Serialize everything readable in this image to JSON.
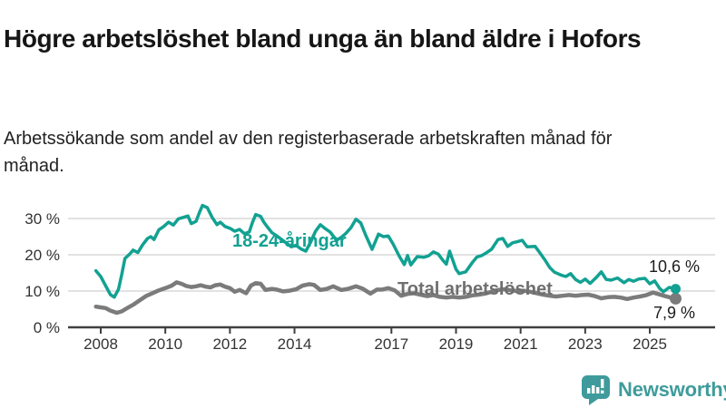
{
  "header": {
    "title": "Högre arbetslöshet bland unga än bland äldre i Hofors",
    "subtitle": "Arbetssökande som andel av den registerbaserade arbetskraften månad för månad."
  },
  "footer": {
    "brand": "Newsworthy"
  },
  "colors": {
    "young_line": "#12a192",
    "total_line": "#7b7b7b",
    "total_label": "#6f6f6f",
    "grid": "#d8d8d8",
    "axis": "#404040",
    "axis_text": "#333333",
    "value_text": "#1c1c1c",
    "brand": "#3f9b9b"
  },
  "chart_data": {
    "type": "line",
    "x_unit": "year (monthly observations)",
    "xlim": [
      2007.0,
      2027.0
    ],
    "ylim": [
      0,
      35
    ],
    "grid": true,
    "legend_position": "inline-labels",
    "y_ticks": [
      {
        "value": 0,
        "label": "0 %"
      },
      {
        "value": 10,
        "label": "10 %"
      },
      {
        "value": 20,
        "label": "20 %"
      },
      {
        "value": 30,
        "label": "30 %"
      }
    ],
    "x_ticks": [
      {
        "value": 2008,
        "label": "2008"
      },
      {
        "value": 2010,
        "label": "2010"
      },
      {
        "value": 2012,
        "label": "2012"
      },
      {
        "value": 2014,
        "label": "2014"
      },
      {
        "value": 2017,
        "label": "2017"
      },
      {
        "value": 2019,
        "label": "2019"
      },
      {
        "value": 2021,
        "label": "2021"
      },
      {
        "value": 2023,
        "label": "2023"
      },
      {
        "value": 2025,
        "label": "2025"
      }
    ],
    "series": [
      {
        "id": "total",
        "name": "Total arbetslöshet",
        "end_label": "7,9 %",
        "end_value": 7.9,
        "points": [
          [
            2007.85,
            5.7
          ],
          [
            2008.0,
            5.5
          ],
          [
            2008.15,
            5.3
          ],
          [
            2008.3,
            4.6
          ],
          [
            2008.5,
            4.0
          ],
          [
            2008.65,
            4.4
          ],
          [
            2008.8,
            5.2
          ],
          [
            2009.0,
            6.2
          ],
          [
            2009.2,
            7.4
          ],
          [
            2009.4,
            8.6
          ],
          [
            2009.6,
            9.4
          ],
          [
            2009.8,
            10.2
          ],
          [
            2010.0,
            10.8
          ],
          [
            2010.2,
            11.5
          ],
          [
            2010.35,
            12.4
          ],
          [
            2010.5,
            12.0
          ],
          [
            2010.65,
            11.4
          ],
          [
            2010.8,
            11.1
          ],
          [
            2010.95,
            11.3
          ],
          [
            2011.1,
            11.6
          ],
          [
            2011.25,
            11.2
          ],
          [
            2011.4,
            11.0
          ],
          [
            2011.55,
            11.6
          ],
          [
            2011.7,
            11.8
          ],
          [
            2011.85,
            11.2
          ],
          [
            2012.0,
            10.8
          ],
          [
            2012.15,
            9.8
          ],
          [
            2012.3,
            10.3
          ],
          [
            2012.5,
            9.4
          ],
          [
            2012.65,
            11.5
          ],
          [
            2012.8,
            12.2
          ],
          [
            2012.95,
            12.0
          ],
          [
            2013.1,
            10.3
          ],
          [
            2013.3,
            10.6
          ],
          [
            2013.45,
            10.4
          ],
          [
            2013.65,
            9.9
          ],
          [
            2013.85,
            10.1
          ],
          [
            2014.05,
            10.5
          ],
          [
            2014.25,
            11.5
          ],
          [
            2014.45,
            11.9
          ],
          [
            2014.6,
            11.7
          ],
          [
            2014.8,
            10.3
          ],
          [
            2015.0,
            10.6
          ],
          [
            2015.2,
            11.3
          ],
          [
            2015.45,
            10.3
          ],
          [
            2015.65,
            10.6
          ],
          [
            2015.9,
            11.3
          ],
          [
            2016.1,
            10.7
          ],
          [
            2016.35,
            9.3
          ],
          [
            2016.55,
            10.4
          ],
          [
            2016.7,
            10.4
          ],
          [
            2016.9,
            10.8
          ],
          [
            2017.1,
            10.2
          ],
          [
            2017.3,
            8.7
          ],
          [
            2017.5,
            9.2
          ],
          [
            2017.7,
            9.4
          ],
          [
            2017.9,
            9.0
          ],
          [
            2018.1,
            8.6
          ],
          [
            2018.3,
            8.9
          ],
          [
            2018.5,
            8.4
          ],
          [
            2018.7,
            8.2
          ],
          [
            2018.9,
            8.4
          ],
          [
            2019.1,
            8.2
          ],
          [
            2019.3,
            8.4
          ],
          [
            2019.5,
            8.8
          ],
          [
            2019.7,
            9.0
          ],
          [
            2019.9,
            9.3
          ],
          [
            2020.1,
            9.8
          ],
          [
            2020.3,
            10.3
          ],
          [
            2020.5,
            10.5
          ],
          [
            2020.7,
            10.2
          ],
          [
            2020.9,
            10.0
          ],
          [
            2021.1,
            10.1
          ],
          [
            2021.3,
            9.8
          ],
          [
            2021.5,
            9.4
          ],
          [
            2021.7,
            9.0
          ],
          [
            2021.9,
            8.7
          ],
          [
            2022.1,
            8.5
          ],
          [
            2022.3,
            8.7
          ],
          [
            2022.5,
            8.9
          ],
          [
            2022.7,
            8.7
          ],
          [
            2022.9,
            8.9
          ],
          [
            2023.1,
            9.0
          ],
          [
            2023.3,
            8.6
          ],
          [
            2023.5,
            8.0
          ],
          [
            2023.7,
            8.3
          ],
          [
            2023.9,
            8.4
          ],
          [
            2024.1,
            8.2
          ],
          [
            2024.3,
            7.8
          ],
          [
            2024.5,
            8.2
          ],
          [
            2024.7,
            8.5
          ],
          [
            2024.9,
            8.9
          ],
          [
            2025.1,
            9.6
          ],
          [
            2025.25,
            9.2
          ],
          [
            2025.4,
            8.8
          ],
          [
            2025.6,
            8.3
          ],
          [
            2025.8,
            7.9
          ]
        ]
      },
      {
        "id": "young",
        "name": "18-24-åringar",
        "end_label": "10,6 %",
        "end_value": 10.6,
        "points": [
          [
            2007.85,
            15.6
          ],
          [
            2008.0,
            14.0
          ],
          [
            2008.15,
            11.5
          ],
          [
            2008.3,
            9.0
          ],
          [
            2008.42,
            8.3
          ],
          [
            2008.55,
            10.5
          ],
          [
            2008.65,
            14.5
          ],
          [
            2008.75,
            19.0
          ],
          [
            2008.9,
            20.2
          ],
          [
            2009.0,
            21.3
          ],
          [
            2009.15,
            20.6
          ],
          [
            2009.3,
            22.8
          ],
          [
            2009.45,
            24.5
          ],
          [
            2009.55,
            25.0
          ],
          [
            2009.65,
            24.2
          ],
          [
            2009.8,
            26.9
          ],
          [
            2009.95,
            27.8
          ],
          [
            2010.1,
            29.0
          ],
          [
            2010.25,
            28.2
          ],
          [
            2010.4,
            29.9
          ],
          [
            2010.55,
            30.3
          ],
          [
            2010.7,
            30.7
          ],
          [
            2010.8,
            28.6
          ],
          [
            2010.95,
            29.2
          ],
          [
            2011.05,
            31.5
          ],
          [
            2011.15,
            33.6
          ],
          [
            2011.3,
            33.0
          ],
          [
            2011.45,
            30.3
          ],
          [
            2011.6,
            28.3
          ],
          [
            2011.7,
            29.0
          ],
          [
            2011.85,
            27.8
          ],
          [
            2012.0,
            27.3
          ],
          [
            2012.15,
            26.5
          ],
          [
            2012.3,
            27.0
          ],
          [
            2012.45,
            25.8
          ],
          [
            2012.6,
            26.3
          ],
          [
            2012.7,
            29.0
          ],
          [
            2012.8,
            31.1
          ],
          [
            2012.95,
            30.6
          ],
          [
            2013.05,
            29.0
          ],
          [
            2013.15,
            27.8
          ],
          [
            2013.3,
            26.1
          ],
          [
            2013.45,
            25.2
          ],
          [
            2013.6,
            24.2
          ],
          [
            2013.75,
            23.2
          ],
          [
            2013.9,
            22.2
          ],
          [
            2014.05,
            22.6
          ],
          [
            2014.2,
            21.6
          ],
          [
            2014.35,
            21.0
          ],
          [
            2014.5,
            23.5
          ],
          [
            2014.65,
            26.5
          ],
          [
            2014.8,
            28.3
          ],
          [
            2014.95,
            27.2
          ],
          [
            2015.1,
            26.3
          ],
          [
            2015.3,
            24.0
          ],
          [
            2015.45,
            24.8
          ],
          [
            2015.6,
            26.0
          ],
          [
            2015.75,
            27.5
          ],
          [
            2015.9,
            29.8
          ],
          [
            2016.05,
            28.8
          ],
          [
            2016.2,
            25.5
          ],
          [
            2016.4,
            21.5
          ],
          [
            2016.6,
            25.7
          ],
          [
            2016.75,
            25.0
          ],
          [
            2016.9,
            25.2
          ],
          [
            2017.05,
            23.0
          ],
          [
            2017.25,
            19.5
          ],
          [
            2017.4,
            17.3
          ],
          [
            2017.5,
            19.8
          ],
          [
            2017.6,
            17.2
          ],
          [
            2017.8,
            19.5
          ],
          [
            2018.0,
            19.3
          ],
          [
            2018.15,
            19.7
          ],
          [
            2018.3,
            20.8
          ],
          [
            2018.45,
            20.2
          ],
          [
            2018.6,
            18.4
          ],
          [
            2018.7,
            17.4
          ],
          [
            2018.8,
            21.0
          ],
          [
            2019.0,
            16.0
          ],
          [
            2019.1,
            14.8
          ],
          [
            2019.3,
            15.3
          ],
          [
            2019.5,
            17.8
          ],
          [
            2019.65,
            19.4
          ],
          [
            2019.8,
            19.8
          ],
          [
            2019.95,
            20.6
          ],
          [
            2020.1,
            21.5
          ],
          [
            2020.3,
            24.2
          ],
          [
            2020.45,
            24.5
          ],
          [
            2020.6,
            22.3
          ],
          [
            2020.75,
            23.3
          ],
          [
            2020.9,
            23.6
          ],
          [
            2021.05,
            24.0
          ],
          [
            2021.2,
            22.2
          ],
          [
            2021.45,
            22.3
          ],
          [
            2021.6,
            20.5
          ],
          [
            2021.75,
            18.6
          ],
          [
            2021.9,
            16.5
          ],
          [
            2022.05,
            15.2
          ],
          [
            2022.25,
            14.4
          ],
          [
            2022.4,
            14.0
          ],
          [
            2022.55,
            14.8
          ],
          [
            2022.7,
            13.2
          ],
          [
            2022.85,
            12.4
          ],
          [
            2023.0,
            13.3
          ],
          [
            2023.15,
            12.1
          ],
          [
            2023.35,
            13.8
          ],
          [
            2023.5,
            15.3
          ],
          [
            2023.65,
            13.2
          ],
          [
            2023.8,
            13.0
          ],
          [
            2024.0,
            13.6
          ],
          [
            2024.2,
            12.3
          ],
          [
            2024.35,
            13.2
          ],
          [
            2024.5,
            12.7
          ],
          [
            2024.65,
            13.3
          ],
          [
            2024.85,
            13.5
          ],
          [
            2025.0,
            12.0
          ],
          [
            2025.15,
            12.8
          ],
          [
            2025.3,
            10.8
          ],
          [
            2025.42,
            9.8
          ],
          [
            2025.6,
            11.0
          ],
          [
            2025.8,
            10.6
          ]
        ]
      }
    ]
  }
}
